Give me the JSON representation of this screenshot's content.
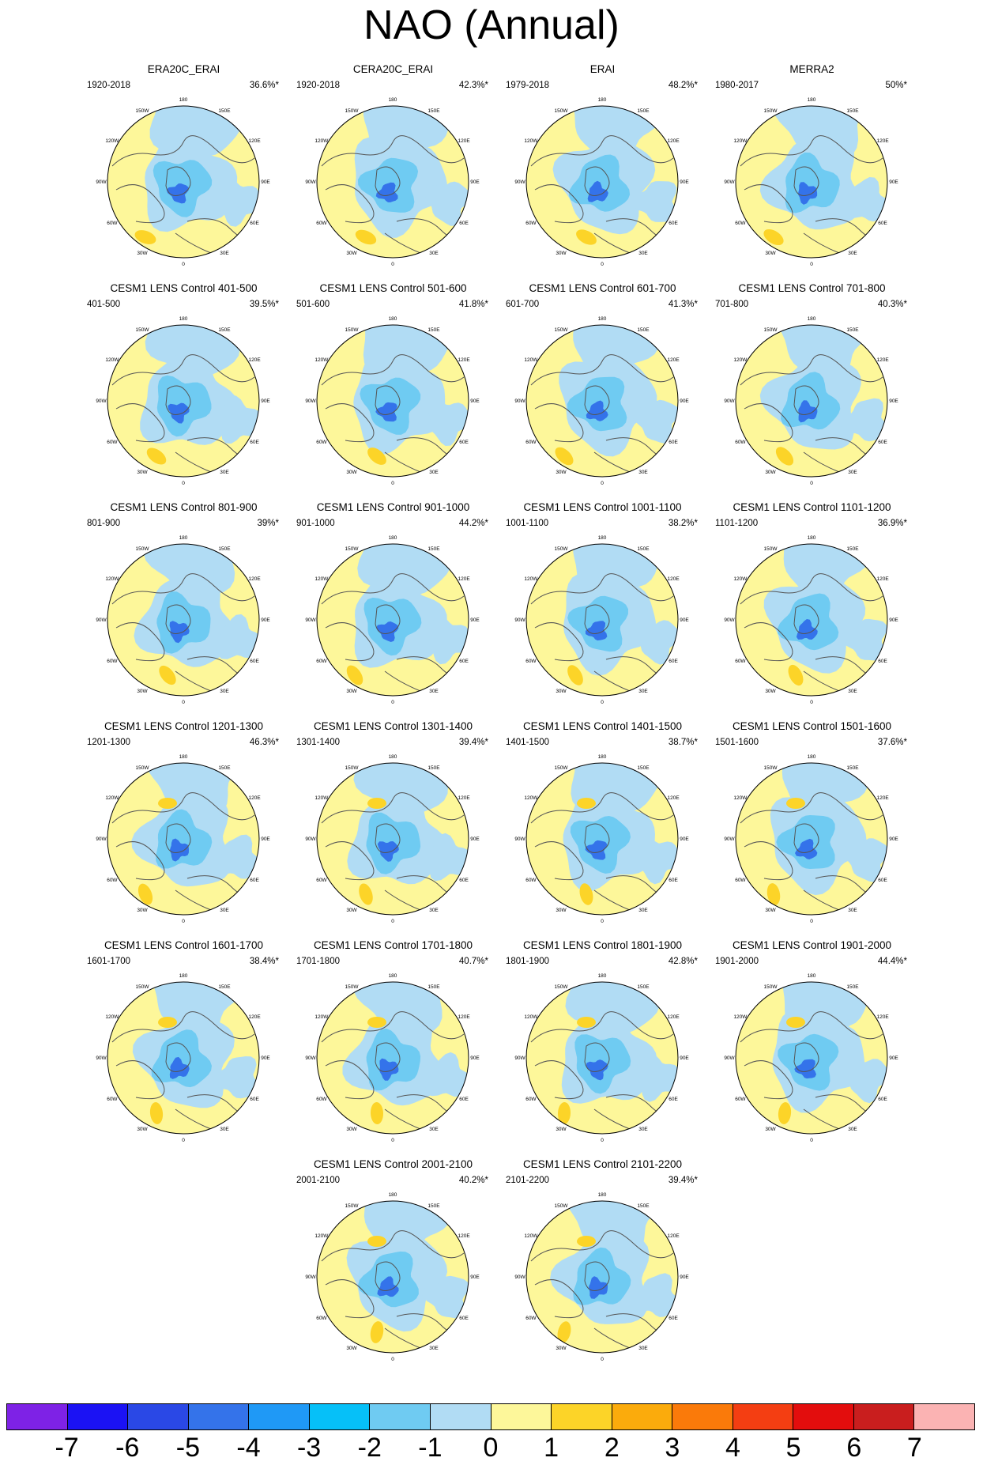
{
  "title": "NAO (Annual)",
  "panels": [
    {
      "title": "ERA20C_ERAI",
      "period": "1920-2018",
      "variance": "36.6%*"
    },
    {
      "title": "CERA20C_ERAI",
      "period": "1920-2018",
      "variance": "42.3%*"
    },
    {
      "title": "ERAI",
      "period": "1979-2018",
      "variance": "48.2%*"
    },
    {
      "title": "MERRA2",
      "period": "1980-2017",
      "variance": "50%*"
    },
    {
      "title": "CESM1 LENS Control 401-500",
      "period": "401-500",
      "variance": "39.5%*"
    },
    {
      "title": "CESM1 LENS Control 501-600",
      "period": "501-600",
      "variance": "41.8%*"
    },
    {
      "title": "CESM1 LENS Control 601-700",
      "period": "601-700",
      "variance": "41.3%*"
    },
    {
      "title": "CESM1 LENS Control 701-800",
      "period": "701-800",
      "variance": "40.3%*"
    },
    {
      "title": "CESM1 LENS Control 801-900",
      "period": "801-900",
      "variance": "39%*"
    },
    {
      "title": "CESM1 LENS Control 901-1000",
      "period": "901-1000",
      "variance": "44.2%*"
    },
    {
      "title": "CESM1 LENS Control 1001-1100",
      "period": "1001-1100",
      "variance": "38.2%*"
    },
    {
      "title": "CESM1 LENS Control 1101-1200",
      "period": "1101-1200",
      "variance": "36.9%*"
    },
    {
      "title": "CESM1 LENS Control 1201-1300",
      "period": "1201-1300",
      "variance": "46.3%*"
    },
    {
      "title": "CESM1 LENS Control 1301-1400",
      "period": "1301-1400",
      "variance": "39.4%*"
    },
    {
      "title": "CESM1 LENS Control 1401-1500",
      "period": "1401-1500",
      "variance": "38.7%*"
    },
    {
      "title": "CESM1 LENS Control 1501-1600",
      "period": "1501-1600",
      "variance": "37.6%*"
    },
    {
      "title": "CESM1 LENS Control 1601-1700",
      "period": "1601-1700",
      "variance": "38.4%*"
    },
    {
      "title": "CESM1 LENS Control 1701-1800",
      "period": "1701-1800",
      "variance": "40.7%*"
    },
    {
      "title": "CESM1 LENS Control 1801-1900",
      "period": "1801-1900",
      "variance": "42.8%*"
    },
    {
      "title": "CESM1 LENS Control 1901-2000",
      "period": "1901-2000",
      "variance": "44.4%*"
    },
    {
      "title": "CESM1 LENS Control 2001-2100",
      "period": "2001-2100",
      "variance": "40.2%*"
    },
    {
      "title": "CESM1 LENS Control 2101-2200",
      "period": "2101-2200",
      "variance": "39.4%*"
    }
  ],
  "longitude_labels": [
    "180",
    "150W",
    "120W",
    "90W",
    "60W",
    "30W",
    "0",
    "30E",
    "60E",
    "90E",
    "120E",
    "150E"
  ],
  "colorbar": {
    "colors": [
      "#7e22e6",
      "#1b12f4",
      "#2a48e6",
      "#3473ea",
      "#1f99f6",
      "#06c0f8",
      "#6fcbf2",
      "#b1dcf4",
      "#fdf79a",
      "#fcd428",
      "#fbab0c",
      "#fa7a0a",
      "#f43e12",
      "#e30d0d",
      "#c91e1e",
      "#fbb3b3"
    ],
    "labels": [
      "-7",
      "-6",
      "-5",
      "-4",
      "-3",
      "-2",
      "-1",
      "0",
      "1",
      "2",
      "3",
      "4",
      "5",
      "6",
      "7"
    ]
  },
  "colors": {
    "yellow": "#fdf79a",
    "light_blue": "#b1dcf4",
    "mid_blue": "#6fcbf2",
    "deep_blue": "#3473ea",
    "orange": "#fcd428",
    "coast": "#555555"
  }
}
